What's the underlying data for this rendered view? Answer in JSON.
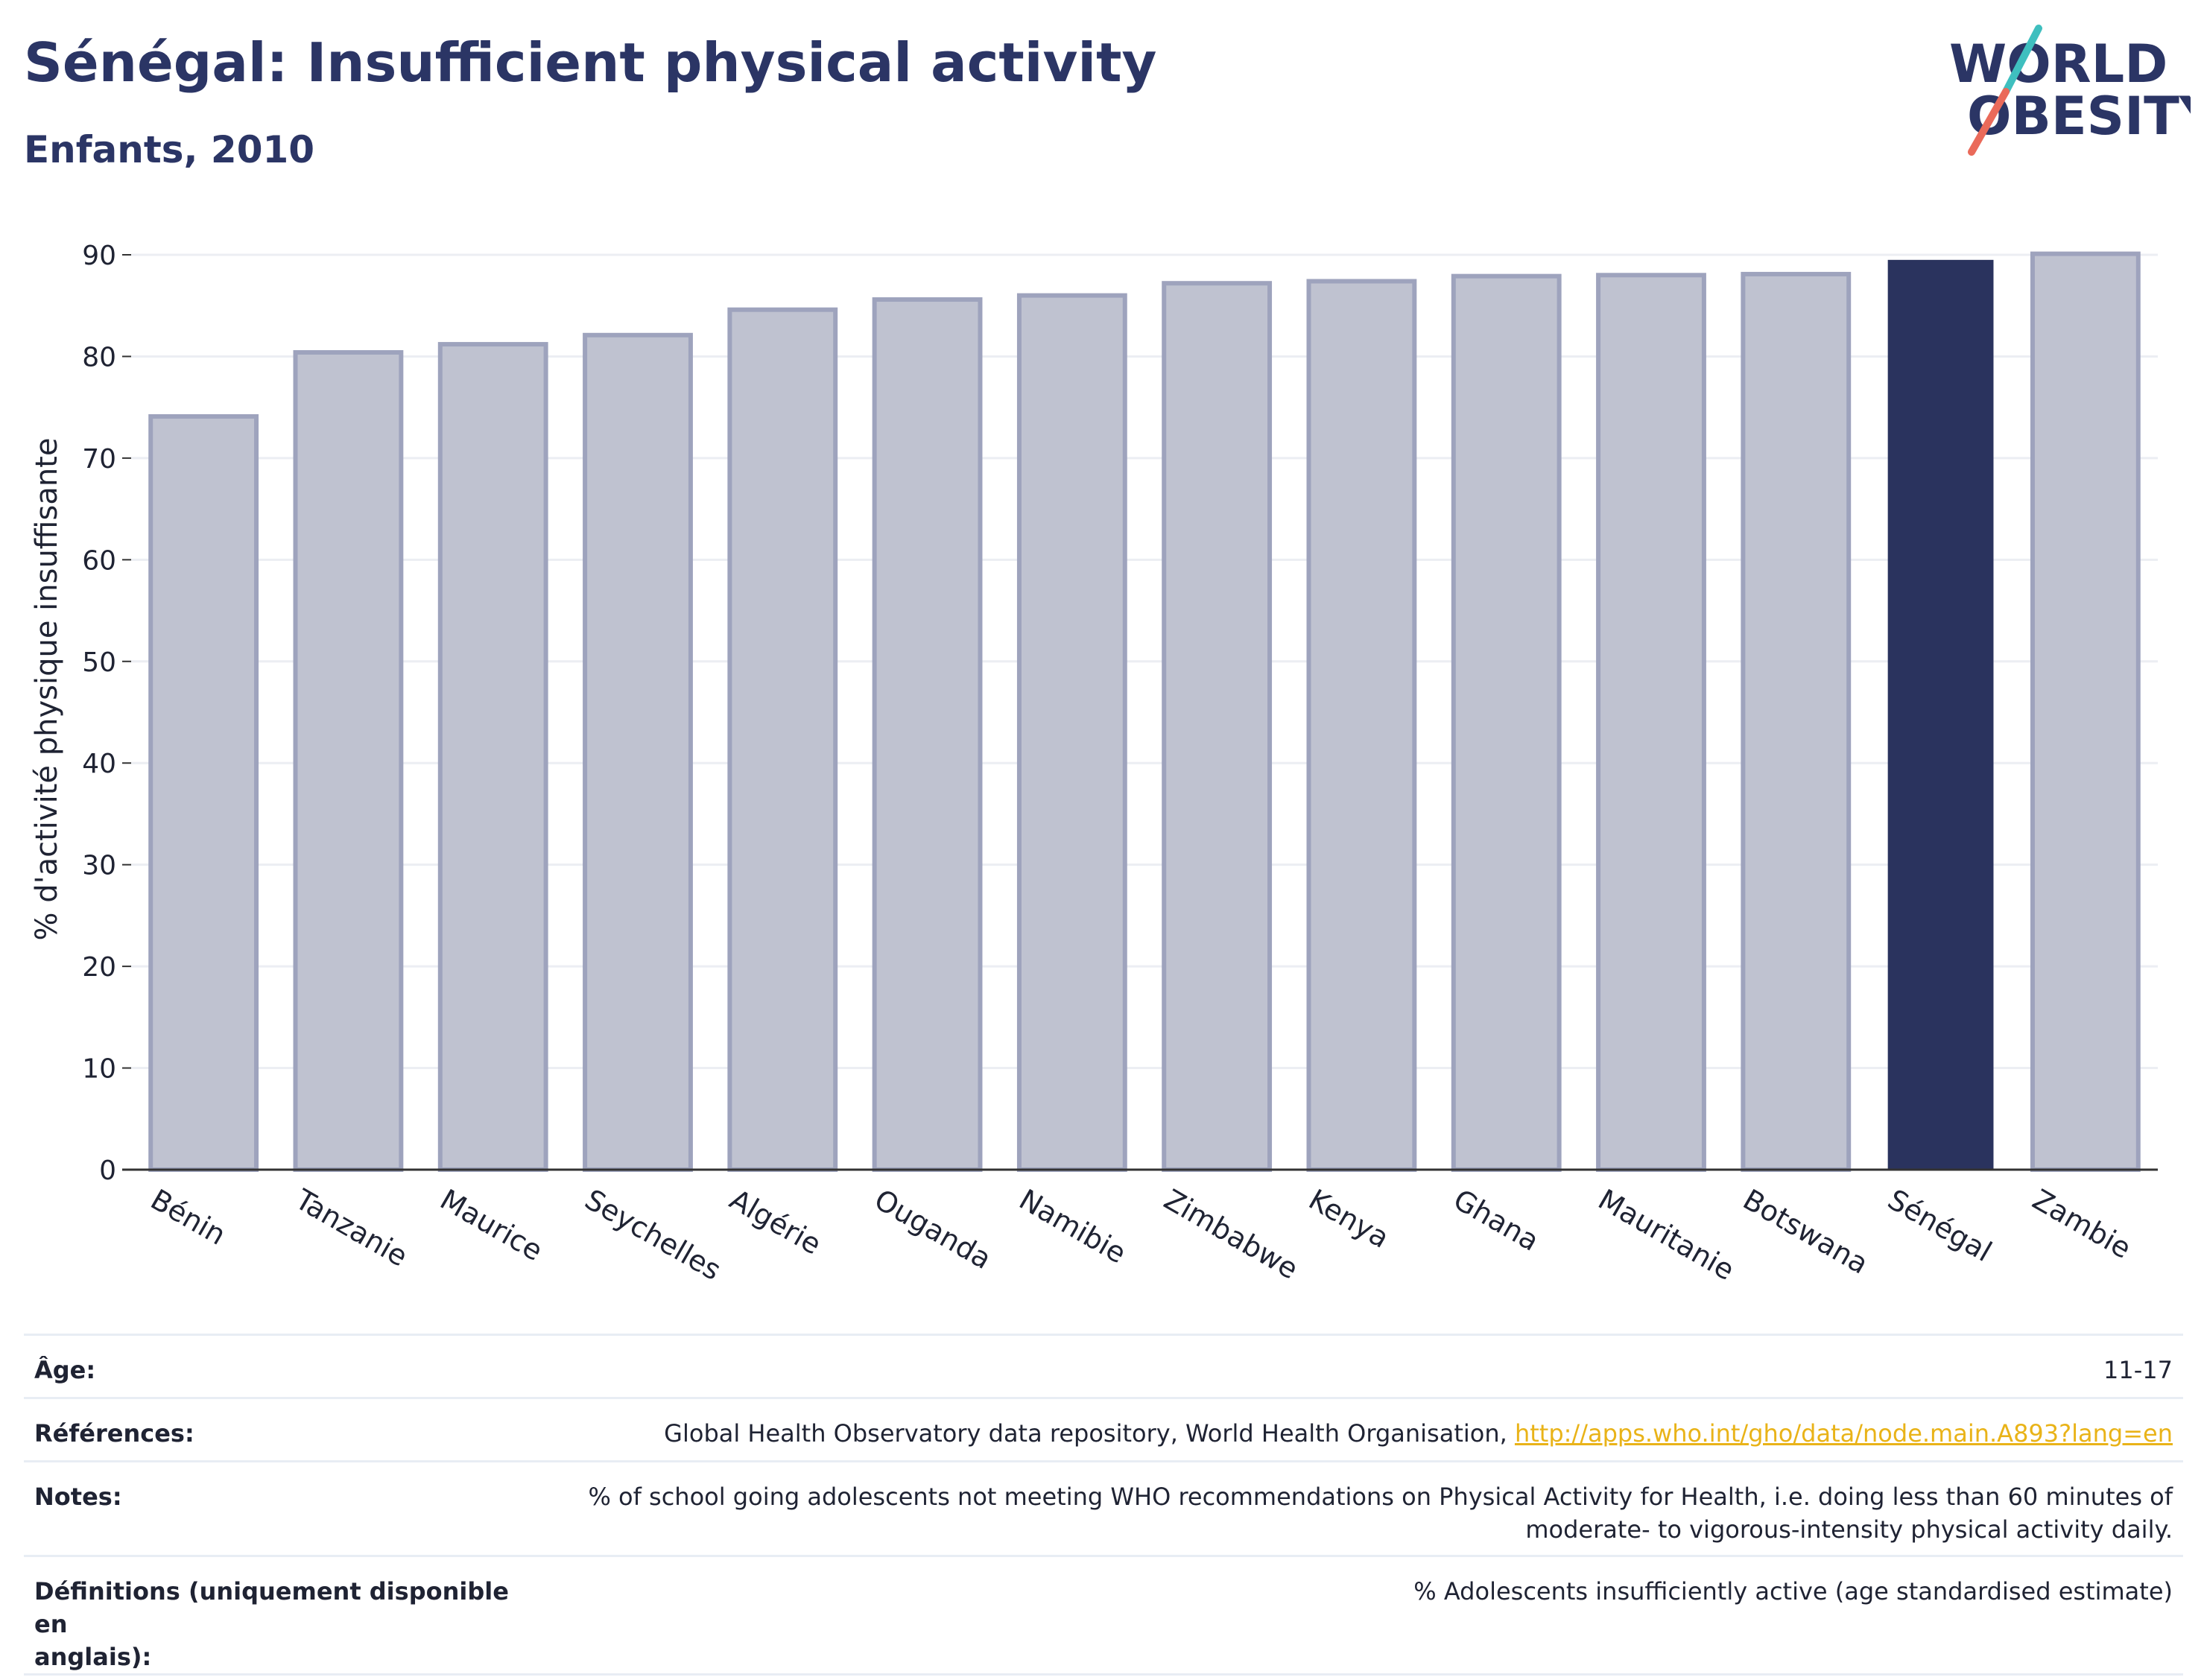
{
  "header": {
    "title": "Sénégal: Insufficient physical activity",
    "subtitle": "Enfants, 2010"
  },
  "logo": {
    "line1": "WORLD",
    "line2": "OBESITY",
    "colors": {
      "text": "#2b3565",
      "slash_top": "#3fbfbf",
      "slash_bottom": "#ea6a5a"
    }
  },
  "chart_data": {
    "type": "bar",
    "ylabel": "% d'activité physique insuffisante",
    "ylim": [
      0,
      90
    ],
    "yticks": [
      0,
      10,
      20,
      30,
      40,
      50,
      60,
      70,
      80,
      90
    ],
    "grid": true,
    "categories": [
      "Bénin",
      "Tanzanie",
      "Maurice",
      "Seychelles",
      "Algérie",
      "Ouganda",
      "Namibie",
      "Zimbabwe",
      "Kenya",
      "Ghana",
      "Mauritanie",
      "Botswana",
      "Sénégal",
      "Zambie"
    ],
    "values": [
      74.1,
      80.4,
      81.2,
      82.1,
      84.6,
      85.6,
      86.0,
      87.2,
      87.4,
      87.9,
      88.0,
      88.1,
      89.5,
      90.1
    ],
    "highlight": "Sénégal",
    "colors": {
      "bar": "#bfc2d0",
      "bar_edge": "#9ea3bd",
      "highlight": "#2a335e",
      "grid": "#eceef3",
      "axis": "#333333"
    }
  },
  "meta": {
    "age_label": "Âge:",
    "age_value": "11-17",
    "references_label": "Références:",
    "references_text": "Global Health Observatory data repository, World Health Organisation, ",
    "references_link": "http://apps.who.int/gho/data/node.main.A893?lang=en",
    "notes_label": "Notes:",
    "notes_line1": "% of school going adolescents not meeting WHO recommendations on Physical Activity for Health, i.e. doing less than 60 minutes of",
    "notes_line2": "moderate- to vigorous-intensity physical activity daily.",
    "definitions_label_line1": "Définitions (uniquement disponible en",
    "definitions_label_line2": "anglais):",
    "definitions_value": "% Adolescents insufficiently active (age standardised estimate)"
  }
}
